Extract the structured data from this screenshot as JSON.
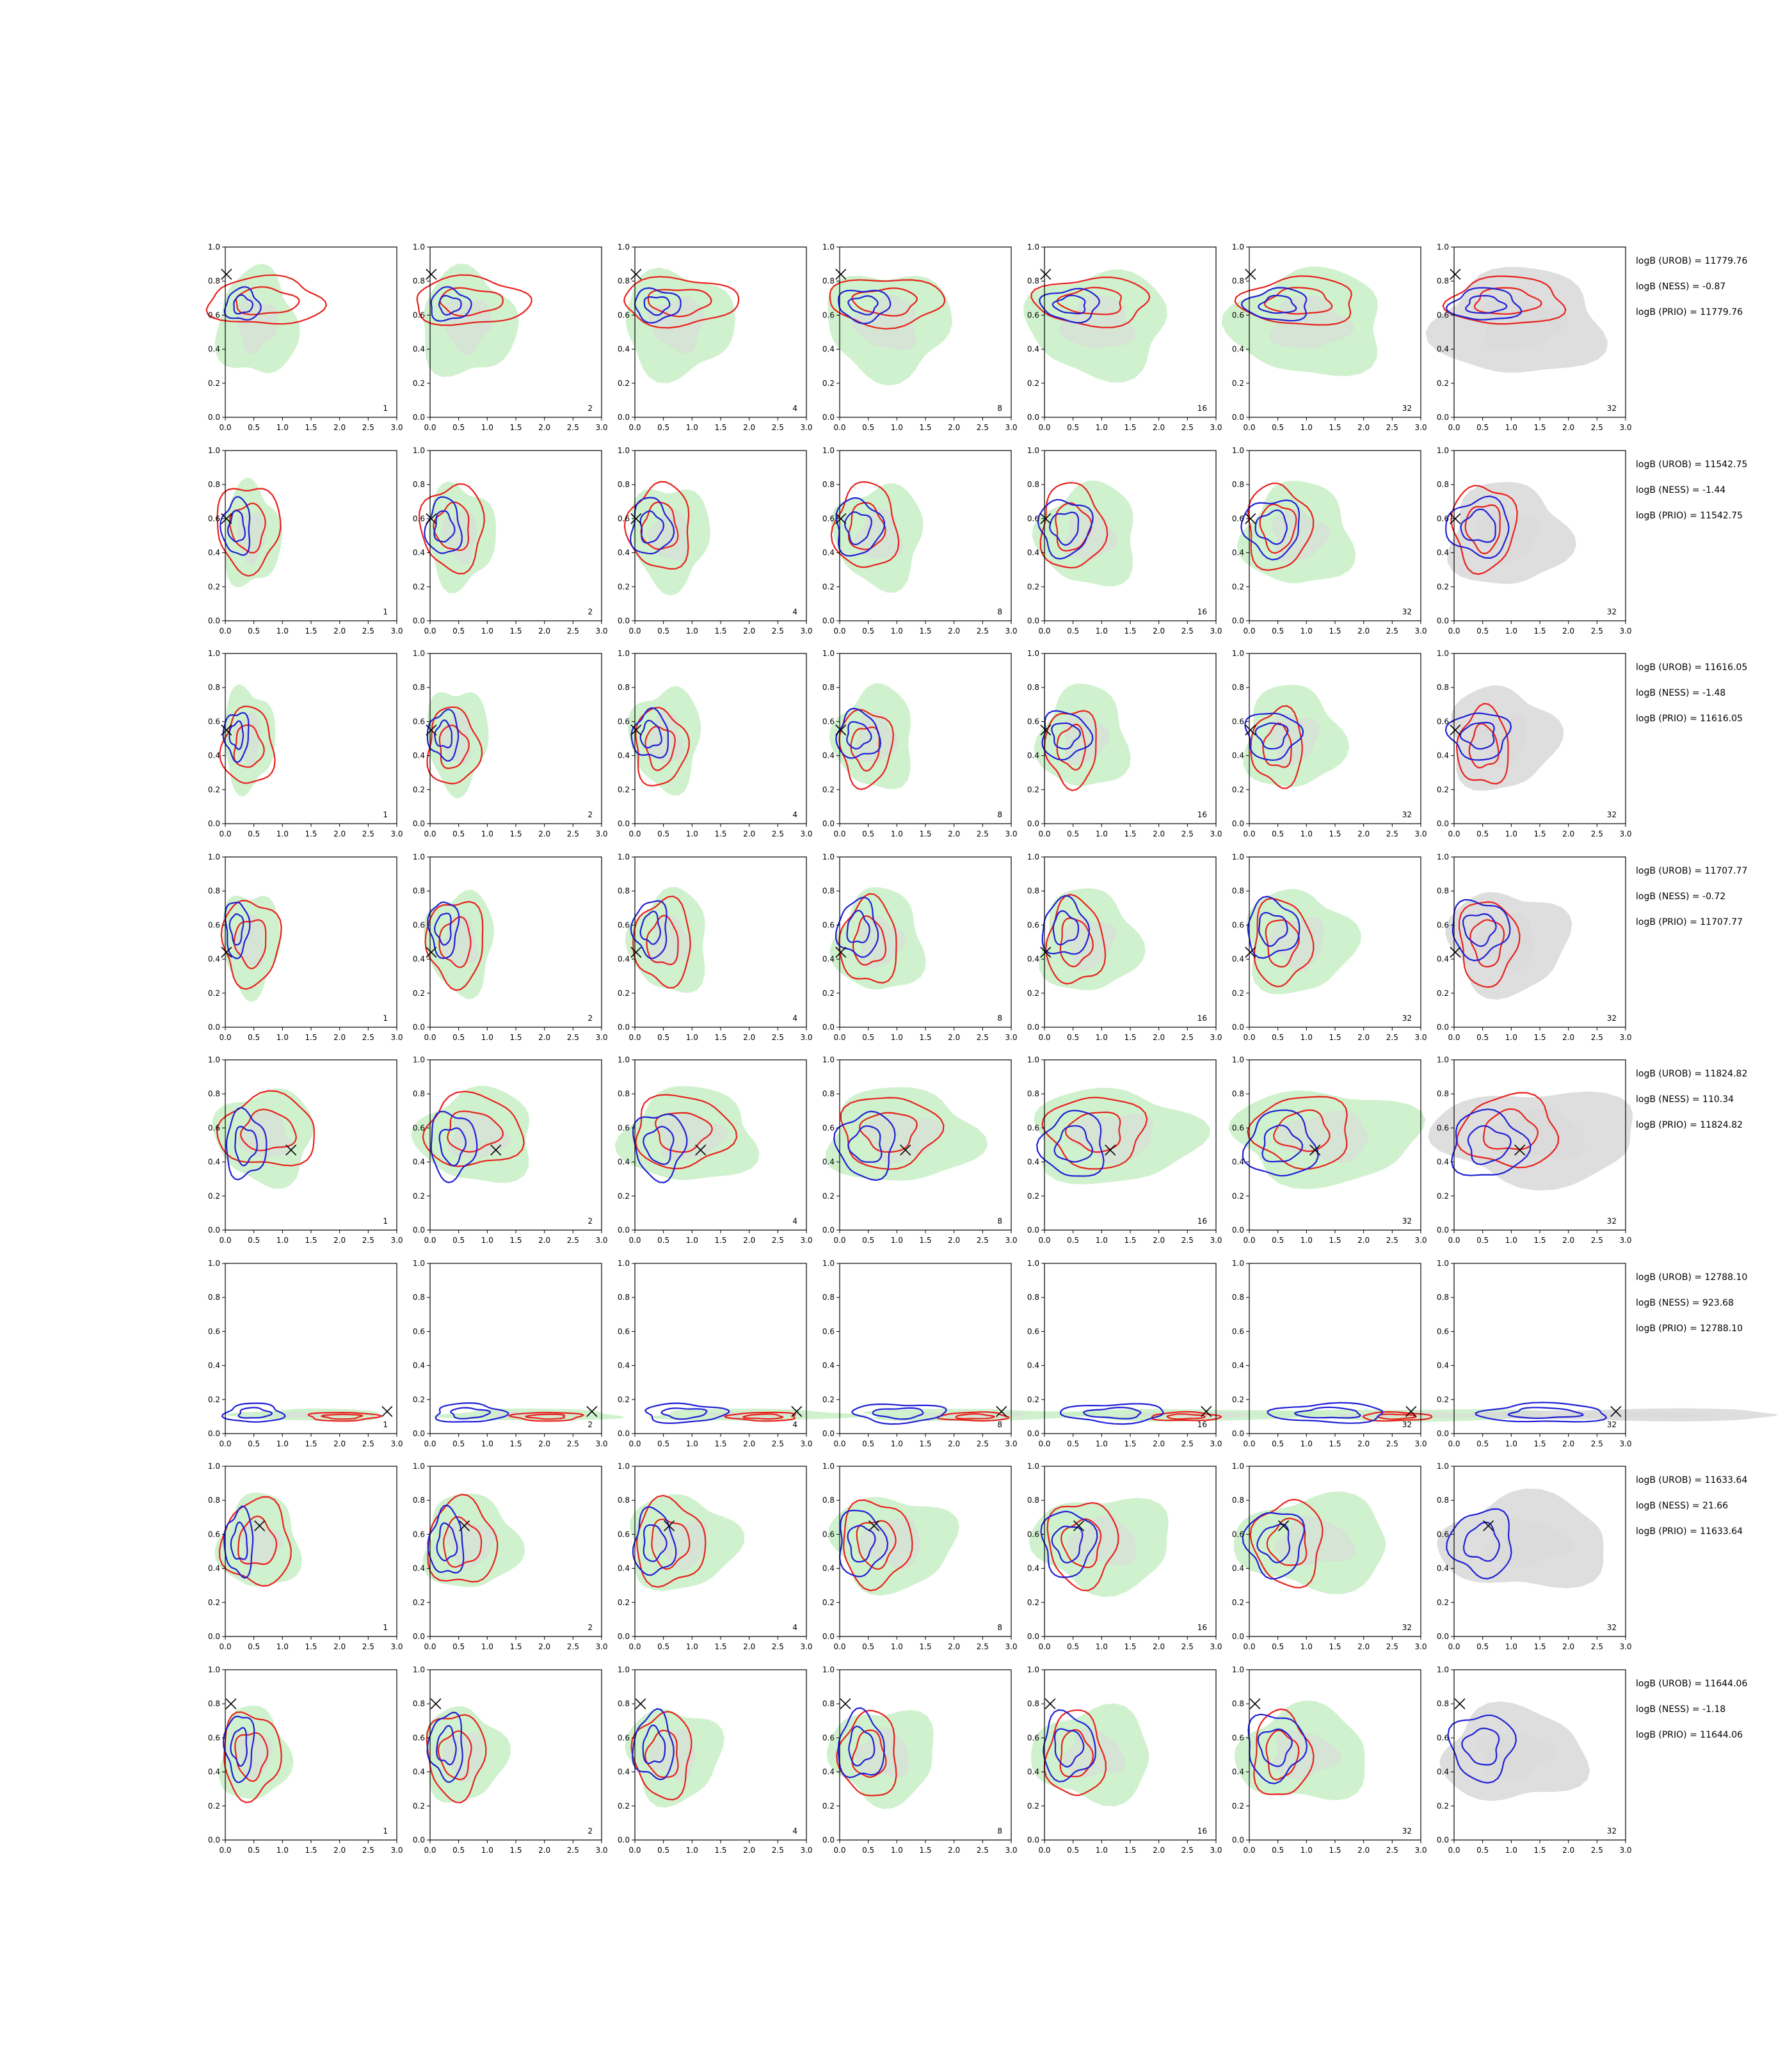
{
  "figure": {
    "x_ticks": [
      "0.0",
      "0.5",
      "1.0",
      "1.5",
      "2.0",
      "2.5",
      "3.0"
    ],
    "y_ticks": [
      "0.0",
      "0.2",
      "0.4",
      "0.6",
      "0.8",
      "1.0"
    ],
    "column_labels": [
      "1",
      "2",
      "4",
      "8",
      "16",
      "32",
      "32"
    ],
    "colors": {
      "fill_green": "#c8eec5",
      "fill_gray": "#d8d8d8",
      "contour_red": "#e8201b",
      "contour_blue": "#1f1fd6",
      "marker": "#000000"
    },
    "marker_icon": "x-marker"
  },
  "chart_data": {
    "type": "contour",
    "rows": [
      {
        "marker": [
          0.02,
          0.84
        ],
        "stats": [
          "logB (UROB) = 11779.76",
          "logB (NESS) = -0.87",
          "logB (PRIO) = 11779.76"
        ]
      },
      {
        "marker": [
          0.02,
          0.6
        ],
        "stats": [
          "logB (UROB) = 11542.75",
          "logB (NESS) = -1.44",
          "logB (PRIO) = 11542.75"
        ]
      },
      {
        "marker": [
          0.02,
          0.55
        ],
        "stats": [
          "logB (UROB) = 11616.05",
          "logB (NESS) = -1.48",
          "logB (PRIO) = 11616.05"
        ]
      },
      {
        "marker": [
          0.02,
          0.44
        ],
        "stats": [
          "logB (UROB) = 11707.77",
          "logB (NESS) = -0.72",
          "logB (PRIO) = 11707.77"
        ]
      },
      {
        "marker": [
          1.15,
          0.47
        ],
        "stats": [
          "logB (UROB) = 11824.82",
          "logB (NESS) = 110.34",
          "logB (PRIO) = 11824.82"
        ]
      },
      {
        "marker": [
          2.83,
          0.13
        ],
        "stats": [
          "logB (UROB) = 12788.10",
          "logB (NESS) = 923.68",
          "logB (PRIO) = 12788.10"
        ]
      },
      {
        "marker": [
          0.6,
          0.65
        ],
        "stats": [
          "logB (UROB) = 11633.64",
          "logB (NESS) = 21.66",
          "logB (PRIO) = 11633.64"
        ]
      },
      {
        "marker": [
          0.1,
          0.8
        ],
        "stats": [
          "logB (UROB) = 11644.06",
          "logB (NESS) = -1.18",
          "logB (PRIO) = 11644.06"
        ]
      }
    ],
    "xlim": [
      0,
      3
    ],
    "ylim": [
      0,
      1
    ],
    "grid": false
  }
}
